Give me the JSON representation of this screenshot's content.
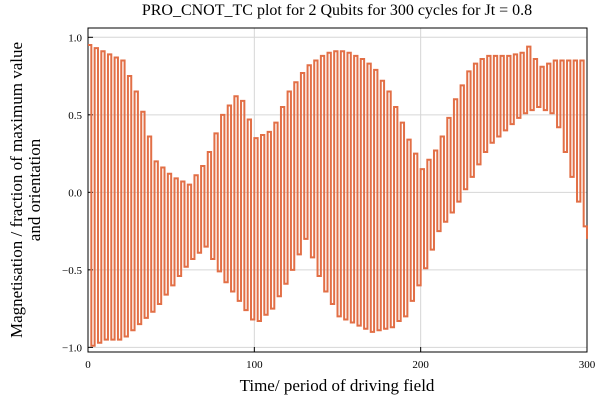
{
  "chart_data": {
    "type": "line",
    "title": "PRO_CNOT_TC plot for 2 Qubits for 300 cycles for Jt = 0.8",
    "x_label": "Time/ period of driving field",
    "y_label": [
      "Magnetisation / fraction of maximum value",
      "and orientation"
    ],
    "step": true,
    "grid": true,
    "xlim": [
      0,
      300
    ],
    "xticks": [
      0,
      100,
      200,
      300
    ],
    "ylim": [
      -1.03,
      1.06
    ],
    "yticks": [
      {
        "value": -1.0,
        "label": "−1.0"
      },
      {
        "value": -0.5,
        "label": "−0.5"
      },
      {
        "value": 0.0,
        "label": "0.0"
      },
      0.5,
      {
        "value": 1.0,
        "label": "1.0"
      }
    ],
    "series": [
      {
        "color": "#e26f46",
        "x": [
          0,
          2,
          4,
          6,
          8,
          10,
          12,
          14,
          16,
          18,
          20,
          22,
          24,
          26,
          28,
          30,
          32,
          34,
          36,
          38,
          40,
          42,
          44,
          46,
          48,
          50,
          52,
          54,
          56,
          58,
          60,
          62,
          64,
          66,
          68,
          70,
          72,
          74,
          76,
          78,
          80,
          82,
          84,
          86,
          88,
          90,
          92,
          94,
          96,
          98,
          100,
          102,
          104,
          106,
          108,
          110,
          112,
          114,
          116,
          118,
          120,
          122,
          124,
          126,
          128,
          130,
          132,
          134,
          136,
          138,
          140,
          142,
          144,
          146,
          148,
          150,
          152,
          154,
          156,
          158,
          160,
          162,
          164,
          166,
          168,
          170,
          172,
          174,
          176,
          178,
          180,
          182,
          184,
          186,
          188,
          190,
          192,
          194,
          196,
          198,
          200,
          202,
          204,
          206,
          208,
          210,
          212,
          214,
          216,
          218,
          220,
          222,
          224,
          226,
          228,
          230,
          232,
          234,
          236,
          238,
          240,
          242,
          244,
          246,
          248,
          250,
          252,
          254,
          256,
          258,
          260,
          262,
          264,
          266,
          268,
          270,
          272,
          274,
          276,
          278,
          280,
          282,
          284,
          286,
          288,
          290,
          292,
          294,
          296,
          298,
          300
        ],
        "values": [
          0.95,
          -0.99,
          0.93,
          -0.97,
          0.91,
          -0.95,
          0.89,
          -0.95,
          0.87,
          -0.95,
          0.85,
          -0.93,
          0.75,
          -0.89,
          0.65,
          -0.85,
          0.52,
          -0.81,
          0.36,
          -0.77,
          0.2,
          -0.72,
          0.16,
          -0.66,
          0.12,
          -0.6,
          0.09,
          -0.54,
          0.07,
          -0.48,
          0.05,
          -0.43,
          0.11,
          -0.39,
          0.17,
          -0.35,
          0.26,
          -0.43,
          0.38,
          -0.51,
          0.5,
          -0.58,
          0.56,
          -0.64,
          0.62,
          -0.7,
          0.59,
          -0.76,
          0.47,
          -0.82,
          0.35,
          -0.83,
          0.37,
          -0.79,
          0.39,
          -0.75,
          0.45,
          -0.67,
          0.55,
          -0.59,
          0.65,
          -0.5,
          0.71,
          -0.4,
          0.77,
          -0.3,
          0.82,
          -0.42,
          0.85,
          -0.54,
          0.88,
          -0.64,
          0.9,
          -0.72,
          0.91,
          -0.8,
          0.91,
          -0.82,
          0.9,
          -0.84,
          0.88,
          -0.86,
          0.86,
          -0.88,
          0.83,
          -0.9,
          0.79,
          -0.89,
          0.72,
          -0.88,
          0.65,
          -0.87,
          0.55,
          -0.83,
          0.45,
          -0.8,
          0.34,
          -0.7,
          0.25,
          -0.6,
          0.15,
          -0.49,
          0.21,
          -0.37,
          0.27,
          -0.25,
          0.36,
          -0.19,
          0.48,
          -0.13,
          0.6,
          -0.06,
          0.69,
          0.02,
          0.78,
          0.1,
          0.83,
          0.18,
          0.86,
          0.26,
          0.88,
          0.32,
          0.88,
          0.36,
          0.88,
          0.4,
          0.88,
          0.44,
          0.89,
          0.48,
          0.9,
          0.51,
          0.94,
          0.53,
          0.86,
          0.55,
          0.81,
          0.53,
          0.83,
          0.51,
          0.85,
          0.42,
          0.85,
          0.26,
          0.85,
          0.1,
          0.85,
          -0.06,
          0.85,
          -0.22,
          -0.3
        ]
      }
    ]
  }
}
